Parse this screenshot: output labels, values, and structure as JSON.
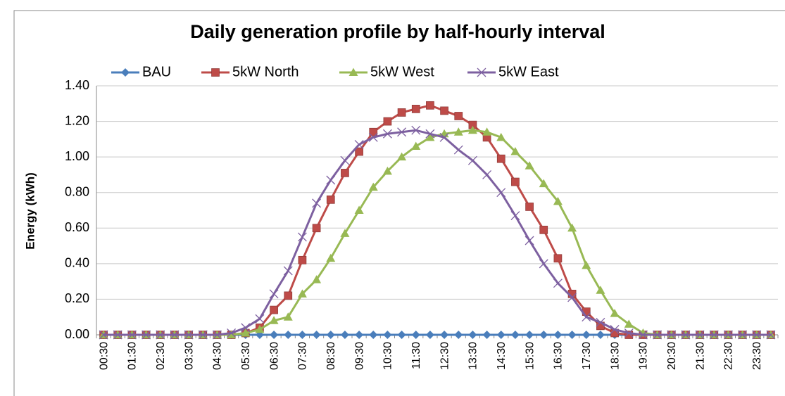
{
  "chart_data": {
    "type": "line",
    "title": "Daily generation profile by half-hourly interval",
    "y_label": "Energy (kWh)",
    "categories": [
      "00:30",
      null,
      "01:30",
      null,
      "02:30",
      null,
      "03:30",
      null,
      "04:30",
      null,
      "05:30",
      null,
      "06:30",
      null,
      "07:30",
      null,
      "08:30",
      null,
      "09:30",
      null,
      "10:30",
      null,
      "11:30",
      null,
      "12:30",
      null,
      "13:30",
      null,
      "14:30",
      null,
      "15:30",
      null,
      "16:30",
      null,
      "17:30",
      null,
      "18:30",
      null,
      "19:30",
      null,
      "20:30",
      null,
      "21:30",
      null,
      "22:30",
      null,
      "23:30",
      null
    ],
    "series": [
      {
        "name": "BAU",
        "color": "#4a7ebb",
        "marker": "diamond",
        "values": [
          0,
          0,
          0,
          0,
          0,
          0,
          0,
          0,
          0,
          0,
          0,
          0,
          0,
          0,
          0,
          0,
          0,
          0,
          0,
          0,
          0,
          0,
          0,
          0,
          0,
          0,
          0,
          0,
          0,
          0,
          0,
          0,
          0,
          0,
          0,
          0,
          0,
          0,
          0,
          0,
          0,
          0,
          0,
          0,
          0,
          0,
          0,
          0
        ]
      },
      {
        "name": "5kW North",
        "color": "#be4b48",
        "marker": "square",
        "values": [
          0,
          0,
          0,
          0,
          0,
          0,
          0,
          0,
          0,
          0,
          0.01,
          0.04,
          0.14,
          0.22,
          0.42,
          0.6,
          0.76,
          0.91,
          1.03,
          1.14,
          1.2,
          1.25,
          1.27,
          1.29,
          1.26,
          1.23,
          1.18,
          1.11,
          0.99,
          0.86,
          0.72,
          0.59,
          0.43,
          0.23,
          0.13,
          0.05,
          0.01,
          0,
          0,
          0,
          0,
          0,
          0,
          0,
          0,
          0,
          0,
          0
        ]
      },
      {
        "name": "5kW West",
        "color": "#98b954",
        "marker": "triangle",
        "values": [
          0,
          0,
          0,
          0,
          0,
          0,
          0,
          0,
          0,
          0,
          0.01,
          0.03,
          0.08,
          0.1,
          0.23,
          0.31,
          0.43,
          0.57,
          0.7,
          0.83,
          0.92,
          1.0,
          1.06,
          1.11,
          1.13,
          1.14,
          1.15,
          1.14,
          1.11,
          1.03,
          0.95,
          0.85,
          0.75,
          0.6,
          0.39,
          0.25,
          0.12,
          0.06,
          0.01,
          0,
          0,
          0,
          0,
          0,
          0,
          0,
          0,
          0
        ]
      },
      {
        "name": "5kW East",
        "color": "#7d60a0",
        "marker": "x",
        "values": [
          0,
          0,
          0,
          0,
          0,
          0,
          0,
          0,
          0,
          0.01,
          0.04,
          0.09,
          0.23,
          0.36,
          0.55,
          0.74,
          0.87,
          0.98,
          1.07,
          1.11,
          1.13,
          1.14,
          1.15,
          1.13,
          1.11,
          1.04,
          0.98,
          0.9,
          0.8,
          0.67,
          0.53,
          0.4,
          0.29,
          0.21,
          0.1,
          0.07,
          0.03,
          0.01,
          0,
          0,
          0,
          0,
          0,
          0,
          0,
          0,
          0,
          0
        ]
      }
    ],
    "ylim": [
      0,
      1.4
    ],
    "yticks": [
      {
        "value": 0,
        "label": "0.00"
      },
      {
        "value": 0.2,
        "label": "0.20"
      },
      {
        "value": 0.4,
        "label": "0.40"
      },
      {
        "value": 0.6,
        "label": "0.60"
      },
      {
        "value": 0.8,
        "label": "0.80"
      },
      {
        "value": 1.0,
        "label": "1.00"
      },
      {
        "value": 1.2,
        "label": "1.20"
      },
      {
        "value": 1.4,
        "label": "1.40"
      }
    ],
    "grid": true,
    "legend": "top"
  }
}
